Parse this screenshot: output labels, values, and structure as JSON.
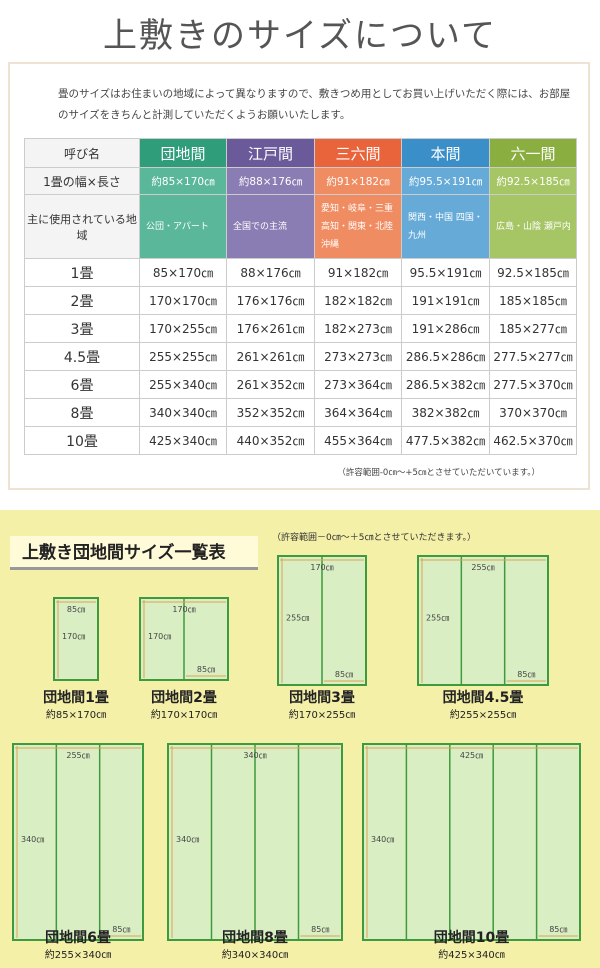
{
  "title": "上敷きのサイズについて",
  "intro": "畳のサイズはお住まいの地域によって異なりますので、敷きつめ用としてお買い上げいただく際には、お部屋のサイズをきちんと計測していただくようお願いいたします。",
  "table": {
    "header": [
      "呼び名",
      "団地間",
      "江戸間",
      "三六間",
      "本間",
      "六一間"
    ],
    "rows": [
      [
        "1畳の幅×長さ",
        "約85×170㎝",
        "約88×176㎝",
        "約91×182㎝",
        "約95.5×191㎝",
        "約92.5×185㎝"
      ],
      [
        "主に使用されている地域",
        "公団・アパート",
        "全国での主流",
        "愛知・岐阜・三重 高知・関東・北陸 沖縄",
        "関西・中国 四国・九州",
        "広島・山陰 瀬戸内"
      ],
      [
        "1畳",
        "85×170㎝",
        "88×176㎝",
        "91×182㎝",
        "95.5×191㎝",
        "92.5×185㎝"
      ],
      [
        "2畳",
        "170×170㎝",
        "176×176㎝",
        "182×182㎝",
        "191×191㎝",
        "185×185㎝"
      ],
      [
        "3畳",
        "170×255㎝",
        "176×261㎝",
        "182×273㎝",
        "191×286㎝",
        "185×277㎝"
      ],
      [
        "4.5畳",
        "255×255㎝",
        "261×261㎝",
        "273×273㎝",
        "286.5×286㎝",
        "277.5×277㎝"
      ],
      [
        "6畳",
        "255×340㎝",
        "261×352㎝",
        "273×364㎝",
        "286.5×382㎝",
        "277.5×370㎝"
      ],
      [
        "8畳",
        "340×340㎝",
        "352×352㎝",
        "364×364㎝",
        "382×382㎝",
        "370×370㎝"
      ],
      [
        "10畳",
        "425×340㎝",
        "440×352㎝",
        "455×364㎝",
        "477.5×382㎝",
        "462.5×370㎝"
      ]
    ]
  },
  "footnote": "（許容範囲-0㎝～+5㎝とさせていただいています。）",
  "section": {
    "title": "上敷き団地間サイズ一覧表",
    "note": "（許容範囲－0㎝～＋5㎝とさせていただきます。）",
    "diagrams": [
      {
        "name": "団地間1畳",
        "size": "約85×170㎝",
        "width_label": "85㎝",
        "height_label": "170㎝"
      },
      {
        "name": "団地間2畳",
        "size": "約170×170㎝",
        "width_label": "170㎝",
        "height_label": "170㎝",
        "panel_label": "85㎝"
      },
      {
        "name": "団地間3畳",
        "size": "約170×255㎝",
        "width_label": "170㎝",
        "height_label": "255㎝",
        "panel_label": "85㎝"
      },
      {
        "name": "団地間4.5畳",
        "size": "約255×255㎝",
        "width_label": "255㎝",
        "height_label": "255㎝",
        "panel_label": "85㎝"
      },
      {
        "name": "団地間6畳",
        "size": "約255×340㎝",
        "width_label": "255㎝",
        "height_label": "340㎝",
        "panel_label": "85㎝"
      },
      {
        "name": "団地間8畳",
        "size": "約340×340㎝",
        "width_label": "340㎝",
        "height_label": "340㎝",
        "panel_label": "85㎝"
      },
      {
        "name": "団地間10畳",
        "size": "約425×340㎝",
        "width_label": "425㎝",
        "height_label": "340㎝",
        "panel_label": "85㎝"
      }
    ]
  }
}
